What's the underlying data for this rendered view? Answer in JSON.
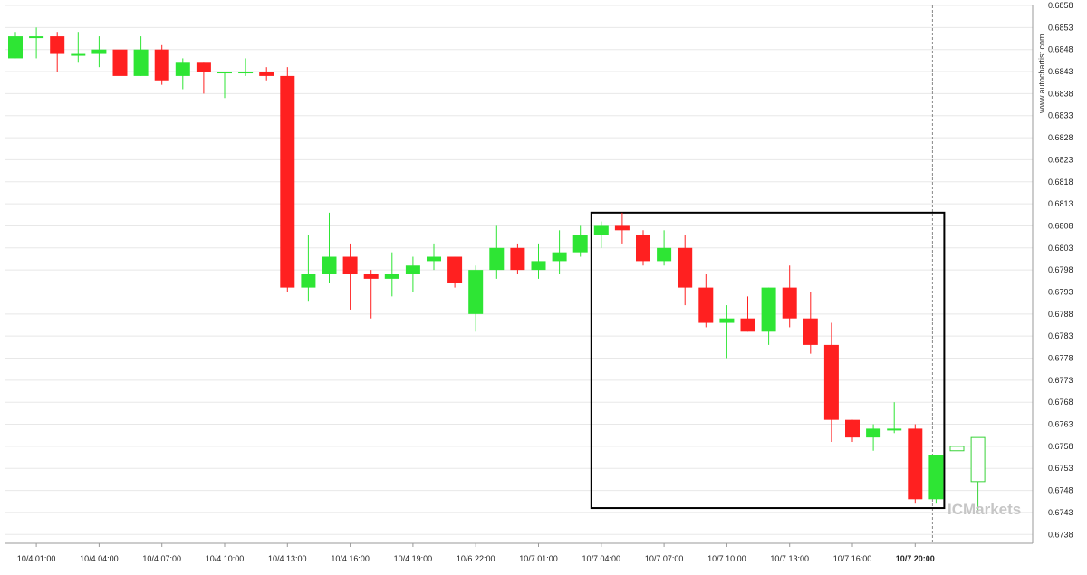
{
  "chart_data": {
    "type": "candlestick",
    "title": "",
    "xlabel": "",
    "ylabel": "",
    "ylim": [
      0.6736,
      0.6858
    ],
    "y_ticks": [
      "0.6738",
      "0.6743",
      "0.6748",
      "0.6753",
      "0.6758",
      "0.6763",
      "0.6768",
      "0.6773",
      "0.6778",
      "0.6783",
      "0.6788",
      "0.6793",
      "0.6798",
      "0.6803",
      "0.6808",
      "0.6813",
      "0.6818",
      "0.6823",
      "0.6828",
      "0.6833",
      "0.6838",
      "0.6843",
      "0.6848",
      "0.6853",
      "0.6858"
    ],
    "x_ticks": [
      {
        "index": 1,
        "label": "10/4 01:00"
      },
      {
        "index": 4,
        "label": "10/4 04:00"
      },
      {
        "index": 7,
        "label": "10/4 07:00"
      },
      {
        "index": 10,
        "label": "10/4 10:00"
      },
      {
        "index": 13,
        "label": "10/4 13:00"
      },
      {
        "index": 16,
        "label": "10/4 16:00"
      },
      {
        "index": 19,
        "label": "10/4 19:00"
      },
      {
        "index": 22,
        "label": "10/6 22:00"
      },
      {
        "index": 25,
        "label": "10/7 01:00"
      },
      {
        "index": 28,
        "label": "10/7 04:00"
      },
      {
        "index": 31,
        "label": "10/7 07:00"
      },
      {
        "index": 34,
        "label": "10/7 10:00"
      },
      {
        "index": 37,
        "label": "10/7 13:00"
      },
      {
        "index": 40,
        "label": "10/7 16:00"
      },
      {
        "index": 43,
        "label": "10/7 20:00",
        "bold": true
      }
    ],
    "candles": [
      {
        "o": 0.6846,
        "h": 0.6852,
        "l": 0.6846,
        "c": 0.6851
      },
      {
        "o": 0.6851,
        "h": 0.6853,
        "l": 0.6846,
        "c": 0.6851
      },
      {
        "o": 0.6851,
        "h": 0.6852,
        "l": 0.6843,
        "c": 0.6847
      },
      {
        "o": 0.6847,
        "h": 0.6852,
        "l": 0.6845,
        "c": 0.6847
      },
      {
        "o": 0.6847,
        "h": 0.6851,
        "l": 0.6844,
        "c": 0.6848
      },
      {
        "o": 0.6848,
        "h": 0.6851,
        "l": 0.6841,
        "c": 0.6842
      },
      {
        "o": 0.6842,
        "h": 0.6851,
        "l": 0.6842,
        "c": 0.6848
      },
      {
        "o": 0.6848,
        "h": 0.6849,
        "l": 0.684,
        "c": 0.6841
      },
      {
        "o": 0.6842,
        "h": 0.6846,
        "l": 0.6839,
        "c": 0.6845
      },
      {
        "o": 0.6845,
        "h": 0.6845,
        "l": 0.6838,
        "c": 0.6843
      },
      {
        "o": 0.6843,
        "h": 0.6843,
        "l": 0.6837,
        "c": 0.6843
      },
      {
        "o": 0.6843,
        "h": 0.6846,
        "l": 0.6842,
        "c": 0.6843
      },
      {
        "o": 0.6843,
        "h": 0.6844,
        "l": 0.6841,
        "c": 0.6842
      },
      {
        "o": 0.6842,
        "h": 0.6844,
        "l": 0.6793,
        "c": 0.6794
      },
      {
        "o": 0.6794,
        "h": 0.6806,
        "l": 0.6791,
        "c": 0.6797
      },
      {
        "o": 0.6797,
        "h": 0.6811,
        "l": 0.6795,
        "c": 0.6801
      },
      {
        "o": 0.6801,
        "h": 0.6804,
        "l": 0.6789,
        "c": 0.6797
      },
      {
        "o": 0.6797,
        "h": 0.6798,
        "l": 0.6787,
        "c": 0.6796
      },
      {
        "o": 0.6796,
        "h": 0.6802,
        "l": 0.6792,
        "c": 0.6797
      },
      {
        "o": 0.6797,
        "h": 0.6801,
        "l": 0.6793,
        "c": 0.6799
      },
      {
        "o": 0.68,
        "h": 0.6804,
        "l": 0.6798,
        "c": 0.6801
      },
      {
        "o": 0.6801,
        "h": 0.6801,
        "l": 0.6794,
        "c": 0.6795
      },
      {
        "o": 0.6788,
        "h": 0.6799,
        "l": 0.6784,
        "c": 0.6798
      },
      {
        "o": 0.6798,
        "h": 0.6808,
        "l": 0.6796,
        "c": 0.6803
      },
      {
        "o": 0.6803,
        "h": 0.6804,
        "l": 0.6797,
        "c": 0.6798
      },
      {
        "o": 0.6798,
        "h": 0.6804,
        "l": 0.6796,
        "c": 0.68
      },
      {
        "o": 0.68,
        "h": 0.6807,
        "l": 0.6797,
        "c": 0.6802
      },
      {
        "o": 0.6802,
        "h": 0.6808,
        "l": 0.6801,
        "c": 0.6806
      },
      {
        "o": 0.6806,
        "h": 0.6809,
        "l": 0.6803,
        "c": 0.6808
      },
      {
        "o": 0.6808,
        "h": 0.6811,
        "l": 0.6804,
        "c": 0.6807
      },
      {
        "o": 0.6806,
        "h": 0.6807,
        "l": 0.6799,
        "c": 0.68
      },
      {
        "o": 0.68,
        "h": 0.6807,
        "l": 0.6799,
        "c": 0.6803
      },
      {
        "o": 0.6803,
        "h": 0.6806,
        "l": 0.679,
        "c": 0.6794
      },
      {
        "o": 0.6794,
        "h": 0.6797,
        "l": 0.6785,
        "c": 0.6786
      },
      {
        "o": 0.6786,
        "h": 0.679,
        "l": 0.6778,
        "c": 0.6787
      },
      {
        "o": 0.6787,
        "h": 0.6792,
        "l": 0.6784,
        "c": 0.6784
      },
      {
        "o": 0.6784,
        "h": 0.6794,
        "l": 0.6781,
        "c": 0.6794
      },
      {
        "o": 0.6794,
        "h": 0.6799,
        "l": 0.6785,
        "c": 0.6787
      },
      {
        "o": 0.6787,
        "h": 0.6793,
        "l": 0.6779,
        "c": 0.6781
      },
      {
        "o": 0.6781,
        "h": 0.6786,
        "l": 0.6759,
        "c": 0.6764
      },
      {
        "o": 0.6764,
        "h": 0.6764,
        "l": 0.6759,
        "c": 0.676
      },
      {
        "o": 0.676,
        "h": 0.6763,
        "l": 0.6757,
        "c": 0.6762
      },
      {
        "o": 0.6762,
        "h": 0.6768,
        "l": 0.6761,
        "c": 0.6762
      },
      {
        "o": 0.6762,
        "h": 0.6763,
        "l": 0.6745,
        "c": 0.6746
      },
      {
        "o": 0.6746,
        "h": 0.6756,
        "l": 0.6745,
        "c": 0.6756
      }
    ],
    "projected_candles": [
      {
        "o": 0.6757,
        "h": 0.676,
        "l": 0.6756,
        "c": 0.6758
      },
      {
        "o": 0.675,
        "h": 0.676,
        "l": 0.6743,
        "c": 0.676
      }
    ],
    "highlight_box": {
      "start_index": 28,
      "end_index": 44,
      "y_top": 0.6811,
      "y_bottom": 0.6744
    },
    "vline_index": 44,
    "colors": {
      "up": "#2ee534",
      "down": "#ff2020",
      "projection": "#39d339",
      "box": "#000000",
      "grid": "#e8e8e8",
      "axis": "#999999"
    },
    "watermark": "www.autochartist.com",
    "brand_label": "ICMarkets"
  }
}
